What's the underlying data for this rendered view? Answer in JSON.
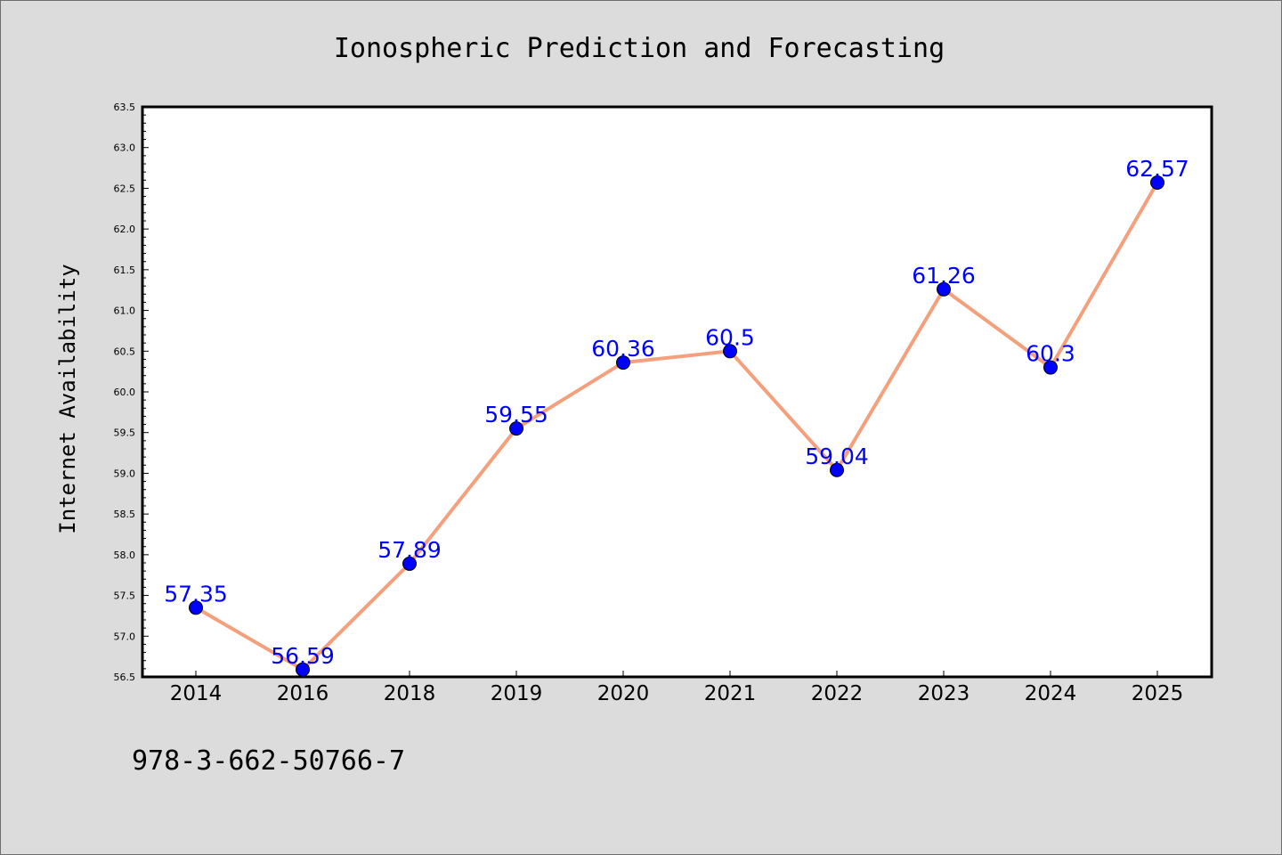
{
  "chart_data": {
    "type": "line",
    "title": "Ionospheric Prediction and Forecasting",
    "xlabel": "",
    "ylabel": "Internet Availability",
    "categories": [
      "2014",
      "2016",
      "2018",
      "2019",
      "2020",
      "2021",
      "2022",
      "2023",
      "2024",
      "2025"
    ],
    "series": [
      {
        "values": [
          57.35,
          56.59,
          57.89,
          59.55,
          60.36,
          60.5,
          59.04,
          61.26,
          60.3,
          62.57
        ],
        "data_labels": [
          "57.35",
          "56.59",
          "57.89",
          "59.55",
          "60.36",
          "60.5",
          "59.04",
          "61.26",
          "60.3",
          "62.57"
        ],
        "line_color": "#f4a07c",
        "marker_color": "#0000ff"
      }
    ],
    "ylim": [
      56.5,
      63.5
    ],
    "yticks": [
      "56.5",
      "57.0",
      "57.5",
      "58.0",
      "58.5",
      "59.0",
      "59.5",
      "60.0",
      "60.5",
      "61.0",
      "61.5",
      "62.0",
      "62.5",
      "63.0",
      "63.5"
    ],
    "grid": false,
    "legend": "none",
    "data_label_color": "#0000ff"
  },
  "annotation": {
    "text": "978-3-662-50766-7"
  },
  "colors": {
    "background": "#dcdcdc",
    "plot_background": "#ffffff",
    "axis": "#000000"
  }
}
